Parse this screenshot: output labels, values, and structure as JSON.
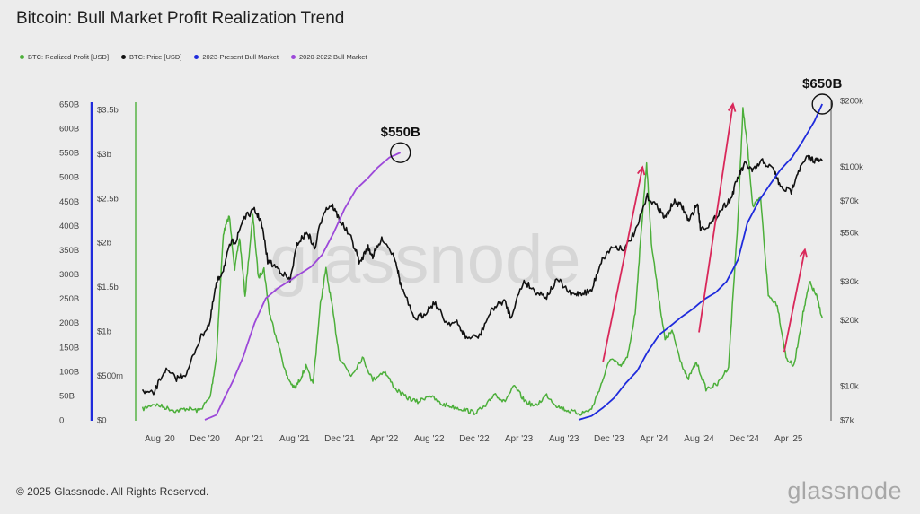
{
  "title": "Bitcoin: Bull Market Profit Realization Trend",
  "footer": "© 2025 Glassnode. All Rights Reserved.",
  "brand": "glassnode",
  "watermark": "glassnode",
  "chart_data": {
    "type": "line",
    "title": "Bitcoin: Bull Market Profit Realization Trend",
    "legend_position": "top-left",
    "grid": false,
    "x_ticks": [
      "Aug '20",
      "Dec '20",
      "Apr '21",
      "Aug '21",
      "Dec '21",
      "Apr '22",
      "Aug '22",
      "Dec '22",
      "Apr '23",
      "Aug '23",
      "Dec '23",
      "Apr '24",
      "Aug '24",
      "Dec '24",
      "Apr '25"
    ],
    "axes": {
      "cumulative_left": {
        "ticks": [
          "0",
          "50B",
          "100B",
          "150B",
          "200B",
          "250B",
          "300B",
          "350B",
          "400B",
          "450B",
          "500B",
          "550B",
          "600B",
          "650B"
        ],
        "range": [
          0,
          650
        ],
        "unit": "B",
        "color": "#1f2bdc"
      },
      "realized_profit_left": {
        "ticks": [
          "$0",
          "$500m",
          "$1b",
          "$1.5b",
          "$2b",
          "$2.5b",
          "$3b",
          "$3.5b"
        ],
        "range": [
          0,
          3.6
        ],
        "unit": "$b",
        "color": "#4caf3a"
      },
      "price_right": {
        "ticks": [
          "$7k",
          "$10k",
          "$20k",
          "$30k",
          "$50k",
          "$70k",
          "$100k",
          "$200k"
        ],
        "range": [
          7000,
          200000
        ],
        "scale": "log",
        "color": "#333333"
      }
    },
    "series": [
      {
        "name": "BTC: Realized Profit [USD]",
        "color": "#4caf3a",
        "axis": "realized_profit_left",
        "points": [
          [
            "2020-06-15",
            0.12
          ],
          [
            "2020-07-15",
            0.18
          ],
          [
            "2020-08-15",
            0.14
          ],
          [
            "2020-09-15",
            0.1
          ],
          [
            "2020-10-15",
            0.13
          ],
          [
            "2020-11-15",
            0.1
          ],
          [
            "2020-12-15",
            0.25
          ],
          [
            "2021-01-01",
            0.7
          ],
          [
            "2021-01-20",
            2.1
          ],
          [
            "2021-02-05",
            2.3
          ],
          [
            "2021-02-20",
            1.7
          ],
          [
            "2021-03-05",
            2.05
          ],
          [
            "2021-03-20",
            1.4
          ],
          [
            "2021-04-10",
            2.3
          ],
          [
            "2021-04-25",
            1.6
          ],
          [
            "2021-05-10",
            1.7
          ],
          [
            "2021-05-25",
            1.2
          ],
          [
            "2021-06-15",
            0.9
          ],
          [
            "2021-07-10",
            0.5
          ],
          [
            "2021-08-01",
            0.35
          ],
          [
            "2021-08-15",
            0.45
          ],
          [
            "2021-09-01",
            0.6
          ],
          [
            "2021-09-20",
            0.4
          ],
          [
            "2021-10-10",
            1.3
          ],
          [
            "2021-10-25",
            1.7
          ],
          [
            "2021-11-10",
            1.3
          ],
          [
            "2021-12-01",
            0.7
          ],
          [
            "2022-01-01",
            0.5
          ],
          [
            "2022-02-01",
            0.7
          ],
          [
            "2022-03-01",
            0.45
          ],
          [
            "2022-04-01",
            0.55
          ],
          [
            "2022-05-01",
            0.35
          ],
          [
            "2022-06-01",
            0.25
          ],
          [
            "2022-07-01",
            0.2
          ],
          [
            "2022-08-01",
            0.28
          ],
          [
            "2022-09-01",
            0.18
          ],
          [
            "2022-10-01",
            0.15
          ],
          [
            "2022-11-01",
            0.12
          ],
          [
            "2022-12-01",
            0.08
          ],
          [
            "2023-01-01",
            0.15
          ],
          [
            "2023-01-25",
            0.3
          ],
          [
            "2023-02-20",
            0.2
          ],
          [
            "2023-03-20",
            0.38
          ],
          [
            "2023-04-15",
            0.22
          ],
          [
            "2023-05-15",
            0.15
          ],
          [
            "2023-06-15",
            0.28
          ],
          [
            "2023-07-15",
            0.15
          ],
          [
            "2023-08-15",
            0.1
          ],
          [
            "2023-09-15",
            0.07
          ],
          [
            "2023-10-15",
            0.12
          ],
          [
            "2023-11-10",
            0.4
          ],
          [
            "2023-12-05",
            0.7
          ],
          [
            "2024-01-01",
            0.6
          ],
          [
            "2024-01-20",
            0.7
          ],
          [
            "2024-02-10",
            1.2
          ],
          [
            "2024-02-28",
            2.2
          ],
          [
            "2024-03-12",
            2.9
          ],
          [
            "2024-03-25",
            2.0
          ],
          [
            "2024-04-10",
            1.5
          ],
          [
            "2024-05-01",
            0.9
          ],
          [
            "2024-05-20",
            1.0
          ],
          [
            "2024-06-10",
            0.7
          ],
          [
            "2024-07-01",
            0.45
          ],
          [
            "2024-07-25",
            0.65
          ],
          [
            "2024-08-20",
            0.35
          ],
          [
            "2024-09-20",
            0.4
          ],
          [
            "2024-10-20",
            0.6
          ],
          [
            "2024-11-15",
            2.3
          ],
          [
            "2024-11-28",
            3.5
          ],
          [
            "2024-12-10",
            3.1
          ],
          [
            "2024-12-25",
            2.4
          ],
          [
            "2025-01-15",
            2.5
          ],
          [
            "2025-02-05",
            1.4
          ],
          [
            "2025-03-01",
            1.3
          ],
          [
            "2025-03-25",
            0.7
          ],
          [
            "2025-04-15",
            0.6
          ],
          [
            "2025-05-10",
            1.2
          ],
          [
            "2025-05-28",
            1.55
          ],
          [
            "2025-06-15",
            1.4
          ],
          [
            "2025-07-01",
            1.15
          ]
        ]
      },
      {
        "name": "BTC: Price [USD]",
        "color": "#111111",
        "axis": "price_right",
        "points": [
          [
            "2020-06-15",
            9400
          ],
          [
            "2020-07-15",
            9200
          ],
          [
            "2020-08-15",
            11800
          ],
          [
            "2020-09-15",
            10800
          ],
          [
            "2020-10-15",
            11500
          ],
          [
            "2020-11-15",
            16000
          ],
          [
            "2020-12-15",
            19500
          ],
          [
            "2021-01-01",
            29000
          ],
          [
            "2021-01-20",
            34000
          ],
          [
            "2021-02-10",
            45000
          ],
          [
            "2021-02-25",
            46000
          ],
          [
            "2021-03-15",
            58000
          ],
          [
            "2021-04-14",
            63000
          ],
          [
            "2021-05-01",
            57000
          ],
          [
            "2021-05-20",
            37000
          ],
          [
            "2021-06-20",
            34000
          ],
          [
            "2021-07-20",
            30000
          ],
          [
            "2021-08-10",
            45000
          ],
          [
            "2021-09-05",
            50000
          ],
          [
            "2021-09-25",
            42000
          ],
          [
            "2021-10-20",
            63000
          ],
          [
            "2021-11-10",
            67000
          ],
          [
            "2021-12-01",
            57000
          ],
          [
            "2022-01-01",
            47000
          ],
          [
            "2022-01-25",
            36000
          ],
          [
            "2022-02-15",
            43000
          ],
          [
            "2022-03-01",
            39000
          ],
          [
            "2022-03-28",
            47000
          ],
          [
            "2022-05-01",
            38000
          ],
          [
            "2022-05-15",
            29000
          ],
          [
            "2022-06-20",
            20000
          ],
          [
            "2022-07-15",
            21000
          ],
          [
            "2022-08-15",
            24000
          ],
          [
            "2022-09-15",
            19500
          ],
          [
            "2022-10-15",
            19300
          ],
          [
            "2022-11-10",
            16500
          ],
          [
            "2022-12-15",
            16800
          ],
          [
            "2023-01-20",
            22500
          ],
          [
            "2023-02-20",
            24500
          ],
          [
            "2023-03-10",
            20500
          ],
          [
            "2023-04-15",
            30000
          ],
          [
            "2023-05-15",
            27000
          ],
          [
            "2023-06-15",
            25500
          ],
          [
            "2023-07-15",
            30500
          ],
          [
            "2023-08-20",
            26000
          ],
          [
            "2023-09-15",
            26500
          ],
          [
            "2023-10-15",
            27000
          ],
          [
            "2023-11-10",
            37000
          ],
          [
            "2023-12-10",
            43000
          ],
          [
            "2024-01-15",
            42500
          ],
          [
            "2024-02-15",
            52000
          ],
          [
            "2024-03-14",
            73000
          ],
          [
            "2024-04-15",
            64000
          ],
          [
            "2024-05-01",
            58000
          ],
          [
            "2024-05-25",
            69000
          ],
          [
            "2024-06-15",
            66000
          ],
          [
            "2024-07-05",
            56000
          ],
          [
            "2024-07-28",
            68000
          ],
          [
            "2024-08-05",
            52000
          ],
          [
            "2024-09-05",
            55000
          ],
          [
            "2024-10-01",
            64000
          ],
          [
            "2024-10-28",
            72000
          ],
          [
            "2024-11-15",
            90000
          ],
          [
            "2024-12-05",
            103000
          ],
          [
            "2024-12-25",
            95000
          ],
          [
            "2025-01-20",
            106000
          ],
          [
            "2025-02-20",
            96000
          ],
          [
            "2025-03-10",
            80000
          ],
          [
            "2025-04-08",
            77000
          ],
          [
            "2025-04-25",
            94000
          ],
          [
            "2025-05-22",
            110000
          ],
          [
            "2025-06-10",
            107000
          ],
          [
            "2025-07-01",
            106000
          ]
        ]
      },
      {
        "name": "2023-Present Bull Market",
        "color": "#1f2bdc",
        "axis": "cumulative_left",
        "points": [
          [
            "2023-09-10",
            0
          ],
          [
            "2023-10-15",
            8
          ],
          [
            "2023-11-15",
            25
          ],
          [
            "2023-12-15",
            45
          ],
          [
            "2024-01-15",
            75
          ],
          [
            "2024-02-15",
            100
          ],
          [
            "2024-03-15",
            140
          ],
          [
            "2024-04-15",
            175
          ],
          [
            "2024-05-15",
            193
          ],
          [
            "2024-06-15",
            212
          ],
          [
            "2024-07-15",
            228
          ],
          [
            "2024-08-15",
            248
          ],
          [
            "2024-09-15",
            262
          ],
          [
            "2024-10-15",
            285
          ],
          [
            "2024-11-15",
            330
          ],
          [
            "2024-12-10",
            405
          ],
          [
            "2025-01-10",
            450
          ],
          [
            "2025-02-10",
            485
          ],
          [
            "2025-03-10",
            515
          ],
          [
            "2025-04-10",
            540
          ],
          [
            "2025-05-10",
            575
          ],
          [
            "2025-06-10",
            615
          ],
          [
            "2025-07-01",
            650
          ]
        ]
      },
      {
        "name": "2020-2022 Bull Market",
        "color": "#9c48d9",
        "axis": "cumulative_left",
        "points": [
          [
            "2020-12-01",
            0
          ],
          [
            "2021-01-01",
            10
          ],
          [
            "2021-01-20",
            40
          ],
          [
            "2021-02-15",
            80
          ],
          [
            "2021-03-15",
            130
          ],
          [
            "2021-04-15",
            200
          ],
          [
            "2021-05-15",
            250
          ],
          [
            "2021-06-15",
            270
          ],
          [
            "2021-08-15",
            300
          ],
          [
            "2021-09-15",
            315
          ],
          [
            "2021-10-15",
            340
          ],
          [
            "2021-11-15",
            385
          ],
          [
            "2021-12-15",
            435
          ],
          [
            "2022-01-15",
            475
          ],
          [
            "2022-02-15",
            497
          ],
          [
            "2022-03-15",
            520
          ],
          [
            "2022-04-15",
            540
          ],
          [
            "2022-05-15",
            550
          ]
        ]
      }
    ],
    "annotations": [
      {
        "text": "$550B",
        "date": "2022-05-15",
        "value": 550,
        "axis": "cumulative_left"
      },
      {
        "text": "$650B",
        "date": "2025-07-01",
        "value": 650,
        "axis": "cumulative_left"
      }
    ],
    "arrows": [
      {
        "color": "#d9285a",
        "from": [
          "2023-11-15",
          120
        ],
        "to": [
          "2024-03-01",
          520
        ],
        "axis": "cumulative_left"
      },
      {
        "color": "#d9285a",
        "from": [
          "2024-08-01",
          180
        ],
        "to": [
          "2024-11-01",
          650
        ],
        "axis": "cumulative_left"
      },
      {
        "color": "#d9285a",
        "from": [
          "2025-03-20",
          140
        ],
        "to": [
          "2025-05-15",
          350
        ],
        "axis": "cumulative_left"
      }
    ]
  }
}
